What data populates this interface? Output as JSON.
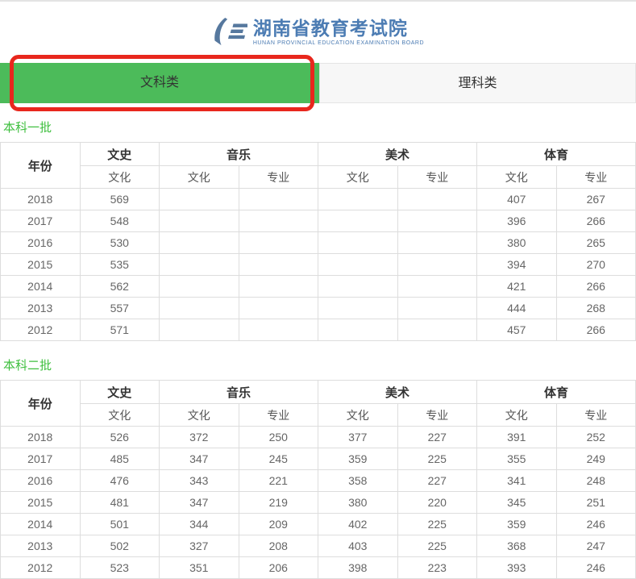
{
  "header": {
    "logo_title": "湖南省教育考试院",
    "logo_subtitle": "HUNAN PROVINCIAL EDUCATION EXAMINATION BOARD"
  },
  "tabs": [
    {
      "id": "liberal-arts",
      "label": "文科类",
      "active": true
    },
    {
      "id": "science",
      "label": "理科类",
      "active": false
    }
  ],
  "annotation": {
    "type": "red-highlight-box",
    "target": "文科类",
    "color": "#e8271d"
  },
  "colors": {
    "tab_active_bg": "#4cbb5a",
    "tab_inactive_bg": "#f7f7f7",
    "section_title_green": "#3fbf3f",
    "logo_blue": "#4c7cb3",
    "table_border": "#dddddd",
    "annotation_red": "#e8271d"
  },
  "sections": [
    {
      "title": "本科一批",
      "header": {
        "year_label": "年份",
        "groups": [
          {
            "label": "文史",
            "subs": [
              "文化"
            ]
          },
          {
            "label": "音乐",
            "subs": [
              "文化",
              "专业"
            ]
          },
          {
            "label": "美术",
            "subs": [
              "文化",
              "专业"
            ]
          },
          {
            "label": "体育",
            "subs": [
              "文化",
              "专业"
            ]
          }
        ]
      },
      "rows": [
        {
          "year": "2018",
          "values": [
            "569",
            "",
            "",
            "",
            "",
            "407",
            "267"
          ]
        },
        {
          "year": "2017",
          "values": [
            "548",
            "",
            "",
            "",
            "",
            "396",
            "266"
          ]
        },
        {
          "year": "2016",
          "values": [
            "530",
            "",
            "",
            "",
            "",
            "380",
            "265"
          ]
        },
        {
          "year": "2015",
          "values": [
            "535",
            "",
            "",
            "",
            "",
            "394",
            "270"
          ]
        },
        {
          "year": "2014",
          "values": [
            "562",
            "",
            "",
            "",
            "",
            "421",
            "266"
          ]
        },
        {
          "year": "2013",
          "values": [
            "557",
            "",
            "",
            "",
            "",
            "444",
            "268"
          ]
        },
        {
          "year": "2012",
          "values": [
            "571",
            "",
            "",
            "",
            "",
            "457",
            "266"
          ]
        }
      ]
    },
    {
      "title": "本科二批",
      "header": {
        "year_label": "年份",
        "groups": [
          {
            "label": "文史",
            "subs": [
              "文化"
            ]
          },
          {
            "label": "音乐",
            "subs": [
              "文化",
              "专业"
            ]
          },
          {
            "label": "美术",
            "subs": [
              "文化",
              "专业"
            ]
          },
          {
            "label": "体育",
            "subs": [
              "文化",
              "专业"
            ]
          }
        ]
      },
      "rows": [
        {
          "year": "2018",
          "values": [
            "526",
            "372",
            "250",
            "377",
            "227",
            "391",
            "252"
          ]
        },
        {
          "year": "2017",
          "values": [
            "485",
            "347",
            "245",
            "359",
            "225",
            "355",
            "249"
          ]
        },
        {
          "year": "2016",
          "values": [
            "476",
            "343",
            "221",
            "358",
            "227",
            "341",
            "248"
          ]
        },
        {
          "year": "2015",
          "values": [
            "481",
            "347",
            "219",
            "380",
            "220",
            "345",
            "251"
          ]
        },
        {
          "year": "2014",
          "values": [
            "501",
            "344",
            "209",
            "402",
            "225",
            "359",
            "246"
          ]
        },
        {
          "year": "2013",
          "values": [
            "502",
            "327",
            "208",
            "403",
            "225",
            "368",
            "247"
          ]
        },
        {
          "year": "2012",
          "values": [
            "523",
            "351",
            "206",
            "398",
            "223",
            "393",
            "246"
          ]
        }
      ]
    }
  ]
}
